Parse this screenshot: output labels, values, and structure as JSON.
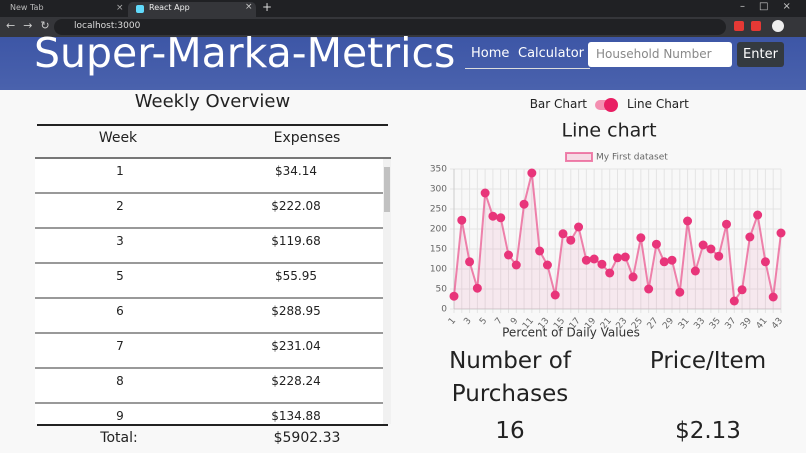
{
  "browser": {
    "tabs": [
      "New Tab",
      "React App"
    ],
    "url": "localhost:3000"
  },
  "header": {
    "title": "Super-Marka-Metrics",
    "nav": [
      "Home",
      "Calculator"
    ],
    "input_placeholder": "Household Number",
    "button": "Enter"
  },
  "overview": {
    "title": "Weekly Overview",
    "columns": [
      "Week",
      "Expenses"
    ],
    "rows": [
      [
        "1",
        "$34.14"
      ],
      [
        "2",
        "$222.08"
      ],
      [
        "3",
        "$119.68"
      ],
      [
        "5",
        "$55.95"
      ],
      [
        "6",
        "$288.95"
      ],
      [
        "7",
        "$231.04"
      ],
      [
        "8",
        "$228.24"
      ],
      [
        "9",
        "$134.88"
      ]
    ],
    "total_label": "Total:",
    "total": "$5902.33"
  },
  "toggle": {
    "left": "Bar Chart",
    "right": "Line Chart"
  },
  "chart_data": {
    "type": "line",
    "title": "Line chart",
    "xlabel": "Percent of Daily Values",
    "categories": [
      1,
      null,
      3,
      null,
      5,
      null,
      7,
      null,
      9,
      null,
      11,
      null,
      13,
      null,
      15,
      null,
      17,
      null,
      19,
      null,
      21,
      null,
      23,
      null,
      25,
      null,
      27,
      null,
      29,
      null,
      31,
      null,
      33,
      null,
      35,
      null,
      37,
      null,
      39,
      null,
      41,
      null,
      43
    ],
    "series": [
      {
        "name": "My First dataset",
        "color": "#e8357a",
        "values": [
          32,
          222,
          118,
          52,
          290,
          232,
          228,
          135,
          110,
          262,
          340,
          145,
          110,
          35,
          188,
          172,
          205,
          122,
          125,
          112,
          90,
          128,
          130,
          80,
          178,
          50,
          162,
          118,
          122,
          42,
          220,
          95,
          160,
          150,
          132,
          212,
          20,
          48,
          180,
          235,
          118,
          30,
          190
        ]
      }
    ],
    "ylim": [
      0,
      350
    ],
    "yticks": [
      0,
      50,
      100,
      150,
      200,
      250,
      300,
      350
    ],
    "grid": true
  },
  "stats": [
    {
      "label": "Number of Purchases",
      "value": "16"
    },
    {
      "label": "Price/Item",
      "value": "$2.13"
    }
  ]
}
